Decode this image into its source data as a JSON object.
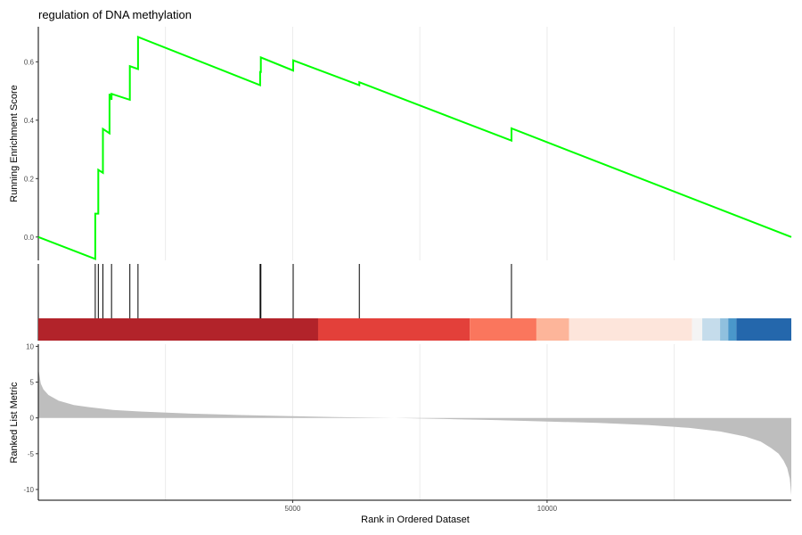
{
  "chart_data": {
    "type": "line",
    "title": "regulation of DNA methylation",
    "xlabel": "Rank in Ordered Dataset",
    "xlim": [
      1,
      14800
    ],
    "x_ticks": [
      5000,
      10000
    ],
    "x_tick_labels": [
      "5000",
      "10000"
    ],
    "grid": "vertical major lines only",
    "running_score": {
      "ylabel": "Running Enrichment Score",
      "ylim": [
        -0.08,
        0.72
      ],
      "y_ticks": [
        0.0,
        0.2,
        0.4,
        0.6
      ],
      "y_tick_labels": [
        "0.0",
        "0.2",
        "0.4",
        "0.6"
      ],
      "color": "#00ff00",
      "series": [
        {
          "x": [
            1,
            1120,
            1120,
            1180,
            1180,
            1270,
            1270,
            1400,
            1400,
            1440,
            1440,
            1800,
            1800,
            1960,
            1960,
            4360,
            4360,
            4375,
            4375,
            5010,
            5010,
            6310,
            6310,
            9300,
            9300,
            14800
          ],
          "y": [
            0.0,
            -0.075,
            0.08,
            0.08,
            0.23,
            0.22,
            0.37,
            0.355,
            0.49,
            0.47,
            0.49,
            0.47,
            0.585,
            0.575,
            0.685,
            0.52,
            0.565,
            0.565,
            0.615,
            0.57,
            0.605,
            0.52,
            0.53,
            0.33,
            0.372,
            0.0
          ]
        }
      ]
    },
    "hit_positions": [
      1120,
      1180,
      1270,
      1440,
      1800,
      1960,
      4360,
      4375,
      5010,
      6310,
      9300
    ],
    "color_bar": [
      {
        "start": 1,
        "end": 5500,
        "color": "#b2232a"
      },
      {
        "start": 5500,
        "end": 8480,
        "color": "#e3403a"
      },
      {
        "start": 8480,
        "end": 9790,
        "color": "#fa765d"
      },
      {
        "start": 9790,
        "end": 10430,
        "color": "#fdb59a"
      },
      {
        "start": 10430,
        "end": 12850,
        "color": "#fde5db"
      },
      {
        "start": 12850,
        "end": 13050,
        "color": "#f4f4f4"
      },
      {
        "start": 13050,
        "end": 13400,
        "color": "#c5dceb"
      },
      {
        "start": 13400,
        "end": 13560,
        "color": "#90c0de"
      },
      {
        "start": 13560,
        "end": 13720,
        "color": "#4a97ca"
      },
      {
        "start": 13720,
        "end": 14800,
        "color": "#2467ac"
      }
    ],
    "ranked_metric": {
      "ylabel": "Ranked List Metric",
      "ylim": [
        -11.5,
        10.3
      ],
      "y_ticks": [
        10,
        5,
        0,
        -5,
        -10
      ],
      "y_tick_labels": [
        "10",
        "5",
        "0",
        "-5",
        "-10"
      ],
      "fill_color": "#bebebe",
      "x": [
        1,
        10,
        50,
        100,
        200,
        400,
        700,
        1000,
        1500,
        2000,
        3000,
        4000,
        5000,
        6000,
        7000,
        8000,
        9000,
        10000,
        11000,
        12000,
        12800,
        13400,
        13900,
        14200,
        14400,
        14550,
        14650,
        14720,
        14770,
        14800
      ],
      "values": [
        8.0,
        6.5,
        4.8,
        4.0,
        3.2,
        2.4,
        1.8,
        1.5,
        1.1,
        0.9,
        0.6,
        0.4,
        0.25,
        0.1,
        0.0,
        -0.15,
        -0.3,
        -0.5,
        -0.7,
        -1.0,
        -1.4,
        -1.9,
        -2.6,
        -3.3,
        -4.2,
        -5.0,
        -6.0,
        -7.0,
        -8.5,
        -10.8
      ]
    }
  }
}
